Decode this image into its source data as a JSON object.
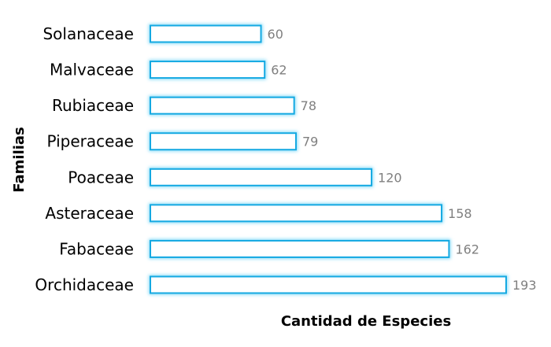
{
  "chart_data": {
    "type": "bar",
    "orientation": "horizontal",
    "categories": [
      "Solanaceae",
      "Malvaceae",
      "Rubiaceae",
      "Piperaceae",
      "Poaceae",
      "Asteraceae",
      "Fabaceae",
      "Orchidaceae"
    ],
    "values": [
      60,
      62,
      78,
      79,
      120,
      158,
      162,
      193
    ],
    "data_labels": [
      "60",
      "62",
      "78",
      "79",
      "120",
      "158",
      "162",
      "193"
    ],
    "title": "",
    "xlabel": "Cantidad de Especies",
    "ylabel": "Familias",
    "xlim": [
      0,
      193
    ],
    "grid": false,
    "legend": "none",
    "colors": {
      "bar_fill": "#ffffff",
      "bar_stroke": "#14a9e2",
      "bar_glow": "#7fd9f7",
      "value_label": "#7f7f7f",
      "category_label": "#000000"
    }
  }
}
